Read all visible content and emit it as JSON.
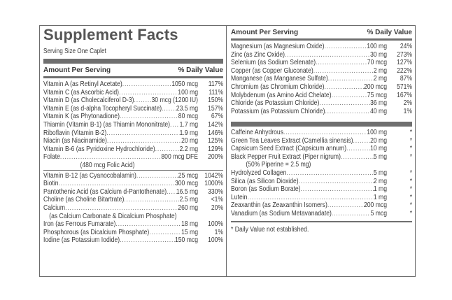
{
  "title": "Supplement Facts",
  "serving_size": "Serving Size One Caplet",
  "header": {
    "amount_label": "Amount Per Serving",
    "dv_label": "% Daily Value"
  },
  "left_rows": [
    {
      "name": "Vitamin A (as Retinyl Acetate)",
      "amount": "1050 mcg",
      "dv": "117%"
    },
    {
      "name": "Vitamin C (as Ascorbic Acid)",
      "amount": "100 mg",
      "dv": "111%"
    },
    {
      "name": "Vitamin D (as Cholecalciferol D-3)",
      "amount": "30 mcg (1200 IU)",
      "dv": "150%"
    },
    {
      "name": "Vitamin E (as d-alpha Tocopheryl Succinate)",
      "amount": "23.5 mg",
      "dv": "157%"
    },
    {
      "name": "Vitamin K (as Phytonadione)",
      "amount": "80 mcg",
      "dv": "67%"
    },
    {
      "name": "Thiamin (Vitamin B-1) (as Thiamin Mononitrate)",
      "amount": "1.7 mg",
      "dv": "142%"
    },
    {
      "name": "Riboflavin (Vitamin B-2)",
      "amount": "1.9 mg",
      "dv": "146%"
    },
    {
      "name": "Niacin (as Niacinamide)",
      "amount": "20 mg",
      "dv": "125%"
    },
    {
      "name": "Vitamin B-6 (as Pyridoxine Hydrochloride)",
      "amount": "2.2 mg",
      "dv": "129%"
    },
    {
      "name": "Folate",
      "amount": "800 mcg DFE",
      "dv": "200%"
    },
    {
      "name": "",
      "amount": "(480 mcg Folic Acid)",
      "dv": "",
      "style": "sub2"
    },
    {
      "name": "Vitamin B-12 (as Cyanocobalamin)",
      "amount": "25 mcg",
      "dv": "1042%"
    },
    {
      "name": "Biotin",
      "amount": "300 mcg",
      "dv": "1000%"
    },
    {
      "name": "Pantothenic Acid (as Calcium d-Pantothenate)",
      "amount": "16.5 mg",
      "dv": "330%"
    },
    {
      "name": "Choline (as Choline Bitartrate)",
      "amount": "2.5 mg",
      "dv": "<1%"
    },
    {
      "name": "Calcium",
      "amount": "260 mg",
      "dv": "20%"
    },
    {
      "name": "(as Calcium Carbonate & Dicalcium Phosphate)",
      "amount": "",
      "dv": "",
      "style": "sub3"
    },
    {
      "name": "Iron (as Ferrous Fumarate)",
      "amount": "18 mg",
      "dv": "100%"
    },
    {
      "name": "Phosphorous (as Dicalcium Phosphate)",
      "amount": "15 mg",
      "dv": "1%"
    },
    {
      "name": "Iodine (as Potassium Iodide)",
      "amount": "150 mcg",
      "dv": "100%"
    }
  ],
  "right_rows_a": [
    {
      "name": "Magnesium (as Magnesium Oxide)",
      "amount": "100 mg",
      "dv": "24%"
    },
    {
      "name": "Zinc (as Zinc Oxide)",
      "amount": "30 mg",
      "dv": "273%"
    },
    {
      "name": "Selenium (as Sodium Selenate)",
      "amount": "70 mcg",
      "dv": "127%"
    },
    {
      "name": "Copper (as Copper Gluconate)",
      "amount": "2 mg",
      "dv": "222%"
    },
    {
      "name": "Manganese (as Manganese Sulfate)",
      "amount": "2 mg",
      "dv": "87%"
    },
    {
      "name": "Chromium (as Chromium Chloride)",
      "amount": "200 mcg",
      "dv": "571%"
    },
    {
      "name": "Molybdenum (as Amino Acid Chelate)",
      "amount": "75 mcg",
      "dv": "167%"
    },
    {
      "name": "Chloride (as Potassium Chloride)",
      "amount": "36 mg",
      "dv": "2%"
    },
    {
      "name": "Potassium (as Potassium Chloride)",
      "amount": "40 mg",
      "dv": "1%"
    }
  ],
  "right_rows_b": [
    {
      "name": "Caffeine Anhydrous",
      "amount": "100 mg",
      "dv": "*"
    },
    {
      "name": "Green Tea Leaves Extract (Camellia sinensis)",
      "amount": "20 mg",
      "dv": "*"
    },
    {
      "name": "Capsicum Seed Extract (Capsicum annum)",
      "amount": "10 mg",
      "dv": "*"
    },
    {
      "name": "Black Pepper Fruit Extract (Piper nigrum)",
      "amount": "5 mg",
      "dv": "*"
    },
    {
      "name": "(50% Piperine = 2.5 mg)",
      "amount": "",
      "dv": "",
      "style": "sub"
    },
    {
      "name": "Hydrolyzed Collagen",
      "amount": "5 mg",
      "dv": "*"
    },
    {
      "name": "Silica (as Silicon Dioxide)",
      "amount": "2 mg",
      "dv": "*"
    },
    {
      "name": "Boron (as Sodium Borate)",
      "amount": "1 mg",
      "dv": "*"
    },
    {
      "name": "Lutein",
      "amount": "1 mg",
      "dv": "*"
    },
    {
      "name": "Zeaxanthin (as Zeaxanthin Isomers)",
      "amount": "200 mcg",
      "dv": "*"
    },
    {
      "name": "Vanadium (as Sodium Metavanadate)",
      "amount": "5 mcg",
      "dv": "*"
    }
  ],
  "footnote": "* Daily Value not established."
}
